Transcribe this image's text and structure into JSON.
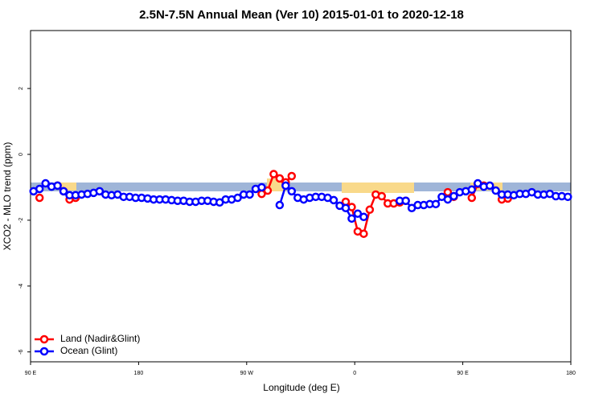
{
  "chart_data": {
    "type": "line",
    "title": "2.5N-7.5N Annual Mean (Ver 10)   2015-01-01 to 2020-12-18",
    "x_label": "Longitude (deg E)",
    "y_label": "XCO2 - MLO trend (ppm)",
    "xlim": [
      90,
      540
    ],
    "ylim": [
      -6.3,
      3.76
    ],
    "xticks": [
      {
        "value": 90,
        "label": "90 E"
      },
      180,
      {
        "value": 270,
        "label": "90 W"
      },
      {
        "value": 360,
        "label": "0"
      },
      {
        "value": 450,
        "label": "90 E"
      },
      {
        "value": 540,
        "label": "180"
      }
    ],
    "yticks": [
      -6,
      -4,
      -2,
      0,
      2
    ],
    "legend": "bottom-left",
    "x": [
      92.5,
      97.5,
      102.5,
      107.5,
      112.5,
      117.5,
      122.5,
      127.5,
      132.5,
      137.5,
      142.5,
      147.5,
      152.5,
      157.5,
      162.5,
      167.5,
      172.5,
      177.5,
      182.5,
      187.5,
      192.5,
      197.5,
      202.5,
      207.5,
      212.5,
      217.5,
      222.5,
      227.5,
      232.5,
      237.5,
      242.5,
      247.5,
      252.5,
      257.5,
      262.5,
      267.5,
      272.5,
      277.5,
      282.5,
      287.5,
      292.5,
      297.5,
      302.5,
      307.5,
      312.5,
      317.5,
      322.5,
      327.5,
      332.5,
      337.5,
      342.5,
      347.5,
      352.5,
      357.5,
      362.5,
      367.5,
      372.5,
      377.5,
      382.5,
      387.5,
      392.5,
      397.5,
      402.5,
      407.5,
      412.5,
      417.5,
      422.5,
      427.5,
      432.5,
      437.5,
      442.5,
      447.5,
      452.5,
      457.5,
      462.5,
      467.5,
      472.5,
      477.5,
      482.5,
      487.5,
      492.5,
      497.5,
      502.5,
      507.5,
      512.5,
      517.5,
      522.5,
      527.5,
      532.5,
      537.5
    ],
    "series": [
      {
        "name": "Land (Nadir&Glint)",
        "color": "#ff0000",
        "values": [
          null,
          -1.32,
          null,
          null,
          -0.95,
          -1.12,
          -1.37,
          -1.32,
          null,
          null,
          null,
          null,
          null,
          null,
          null,
          null,
          null,
          null,
          null,
          null,
          null,
          null,
          null,
          null,
          null,
          null,
          null,
          null,
          null,
          null,
          null,
          null,
          null,
          null,
          null,
          null,
          null,
          null,
          -1.2,
          -1.1,
          -0.6,
          -0.73,
          -0.85,
          -0.66,
          null,
          null,
          null,
          null,
          null,
          null,
          null,
          null,
          -1.44,
          -1.6,
          -2.34,
          -2.41,
          -1.68,
          -1.22,
          -1.27,
          -1.49,
          -1.49,
          -1.46,
          -1.41,
          null,
          null,
          null,
          null,
          null,
          null,
          -1.15,
          -1.29,
          null,
          null,
          -1.32,
          -0.9,
          -0.95,
          null,
          null,
          -1.37,
          -1.34,
          null,
          null,
          null,
          null,
          null,
          null,
          null,
          null,
          null,
          null
        ]
      },
      {
        "name": "Ocean (Glint)",
        "color": "#0000ff",
        "values": [
          -1.12,
          -1.05,
          -0.88,
          -0.98,
          -0.95,
          -1.12,
          -1.24,
          -1.24,
          -1.22,
          -1.2,
          -1.17,
          -1.12,
          -1.22,
          -1.24,
          -1.22,
          -1.29,
          -1.29,
          -1.32,
          -1.32,
          -1.34,
          -1.37,
          -1.37,
          -1.37,
          -1.39,
          -1.41,
          -1.41,
          -1.44,
          -1.44,
          -1.41,
          -1.41,
          -1.44,
          -1.46,
          -1.37,
          -1.37,
          -1.32,
          -1.22,
          -1.22,
          -1.05,
          -1.0,
          null,
          null,
          -1.54,
          -0.95,
          -1.12,
          -1.32,
          -1.37,
          -1.32,
          -1.29,
          -1.29,
          -1.32,
          -1.39,
          -1.56,
          -1.63,
          -1.95,
          -1.8,
          -1.9,
          null,
          null,
          null,
          null,
          null,
          -1.41,
          -1.41,
          -1.63,
          -1.54,
          -1.54,
          -1.51,
          -1.51,
          -1.29,
          -1.37,
          -1.27,
          -1.15,
          -1.12,
          -1.07,
          -0.88,
          -0.98,
          -0.95,
          -1.1,
          -1.22,
          -1.22,
          -1.24,
          -1.2,
          -1.2,
          -1.15,
          -1.22,
          -1.22,
          -1.2,
          -1.27,
          -1.27,
          -1.29
        ]
      }
    ]
  }
}
